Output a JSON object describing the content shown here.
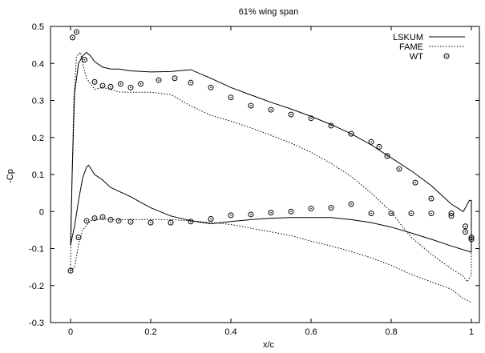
{
  "chart_data": {
    "type": "line",
    "title": "61% wing span",
    "xlabel": "x/c",
    "ylabel": "-Cp",
    "xlim": [
      -0.05,
      1.02
    ],
    "ylim": [
      -0.3,
      0.5
    ],
    "xticks": [
      "0",
      "0.2",
      "0.4",
      "0.6",
      "0.8",
      "1"
    ],
    "xtick_values": [
      0,
      0.2,
      0.4,
      0.6,
      0.8,
      1
    ],
    "yticks": [
      "-0.3",
      "-0.2",
      "-0.1",
      "0",
      "0.1",
      "0.2",
      "0.3",
      "0.4",
      "0.5"
    ],
    "ytick_values": [
      -0.3,
      -0.2,
      -0.1,
      0,
      0.1,
      0.2,
      0.3,
      0.4,
      0.5
    ],
    "grid": false,
    "legend_position": "top-right",
    "series": [
      {
        "name": "LSKUM",
        "style": "solid",
        "segments": [
          [
            [
              0.0,
              -0.09
            ],
            [
              0.004,
              0.1
            ],
            [
              0.01,
              0.32
            ],
            [
              0.02,
              0.4
            ],
            [
              0.03,
              0.42
            ],
            [
              0.04,
              0.43
            ],
            [
              0.05,
              0.42
            ],
            [
              0.06,
              0.405
            ],
            [
              0.08,
              0.39
            ],
            [
              0.1,
              0.385
            ],
            [
              0.12,
              0.385
            ],
            [
              0.15,
              0.38
            ],
            [
              0.2,
              0.377
            ],
            [
              0.25,
              0.378
            ],
            [
              0.3,
              0.383
            ],
            [
              0.35,
              0.36
            ],
            [
              0.4,
              0.335
            ],
            [
              0.45,
              0.315
            ],
            [
              0.5,
              0.295
            ],
            [
              0.55,
              0.277
            ],
            [
              0.6,
              0.257
            ],
            [
              0.65,
              0.235
            ],
            [
              0.7,
              0.21
            ],
            [
              0.75,
              0.18
            ],
            [
              0.8,
              0.145
            ],
            [
              0.85,
              0.11
            ],
            [
              0.9,
              0.07
            ],
            [
              0.95,
              0.02
            ],
            [
              0.98,
              0.0
            ],
            [
              0.995,
              0.03
            ],
            [
              1.0,
              0.03
            ],
            [
              1.0,
              -0.11
            ]
          ],
          [
            [
              0.0,
              -0.09
            ],
            [
              0.01,
              -0.04
            ],
            [
              0.02,
              0.03
            ],
            [
              0.03,
              0.09
            ],
            [
              0.04,
              0.12
            ],
            [
              0.045,
              0.125
            ],
            [
              0.06,
              0.1
            ],
            [
              0.08,
              0.085
            ],
            [
              0.1,
              0.065
            ],
            [
              0.12,
              0.055
            ],
            [
              0.15,
              0.04
            ],
            [
              0.2,
              0.01
            ],
            [
              0.25,
              -0.012
            ],
            [
              0.3,
              -0.025
            ],
            [
              0.35,
              -0.033
            ],
            [
              0.4,
              -0.027
            ],
            [
              0.45,
              -0.022
            ],
            [
              0.5,
              -0.018
            ],
            [
              0.55,
              -0.016
            ],
            [
              0.6,
              -0.016
            ],
            [
              0.65,
              -0.016
            ],
            [
              0.7,
              -0.022
            ],
            [
              0.75,
              -0.03
            ],
            [
              0.8,
              -0.042
            ],
            [
              0.85,
              -0.058
            ],
            [
              0.9,
              -0.075
            ],
            [
              0.95,
              -0.093
            ],
            [
              1.0,
              -0.11
            ]
          ]
        ]
      },
      {
        "name": "FAME",
        "style": "dotted",
        "segments": [
          [
            [
              0.0,
              -0.16
            ],
            [
              0.003,
              0.05
            ],
            [
              0.008,
              0.3
            ],
            [
              0.015,
              0.42
            ],
            [
              0.025,
              0.43
            ],
            [
              0.03,
              0.4
            ],
            [
              0.04,
              0.36
            ],
            [
              0.06,
              0.33
            ],
            [
              0.08,
              0.335
            ],
            [
              0.1,
              0.33
            ],
            [
              0.12,
              0.323
            ],
            [
              0.15,
              0.322
            ],
            [
              0.2,
              0.322
            ],
            [
              0.25,
              0.316
            ],
            [
              0.3,
              0.285
            ],
            [
              0.35,
              0.26
            ],
            [
              0.4,
              0.244
            ],
            [
              0.45,
              0.226
            ],
            [
              0.5,
              0.206
            ],
            [
              0.55,
              0.185
            ],
            [
              0.6,
              0.16
            ],
            [
              0.65,
              0.13
            ],
            [
              0.7,
              0.095
            ],
            [
              0.75,
              0.05
            ],
            [
              0.8,
              0.0
            ],
            [
              0.82,
              -0.03
            ],
            [
              0.85,
              -0.07
            ],
            [
              0.9,
              -0.115
            ],
            [
              0.95,
              -0.155
            ],
            [
              0.98,
              -0.175
            ],
            [
              0.99,
              -0.19
            ],
            [
              1.0,
              -0.17
            ],
            [
              1.0,
              -0.07
            ]
          ],
          [
            [
              0.0,
              -0.16
            ],
            [
              0.01,
              -0.15
            ],
            [
              0.02,
              -0.09
            ],
            [
              0.03,
              -0.05
            ],
            [
              0.05,
              -0.025
            ],
            [
              0.08,
              -0.02
            ],
            [
              0.1,
              -0.022
            ],
            [
              0.15,
              -0.022
            ],
            [
              0.2,
              -0.022
            ],
            [
              0.25,
              -0.022
            ],
            [
              0.3,
              -0.025
            ],
            [
              0.35,
              -0.03
            ],
            [
              0.4,
              -0.035
            ],
            [
              0.45,
              -0.045
            ],
            [
              0.5,
              -0.055
            ],
            [
              0.55,
              -0.065
            ],
            [
              0.6,
              -0.08
            ],
            [
              0.65,
              -0.093
            ],
            [
              0.7,
              -0.108
            ],
            [
              0.75,
              -0.125
            ],
            [
              0.8,
              -0.145
            ],
            [
              0.85,
              -0.17
            ],
            [
              0.9,
              -0.19
            ],
            [
              0.95,
              -0.21
            ],
            [
              0.98,
              -0.235
            ],
            [
              1.0,
              -0.245
            ]
          ]
        ]
      },
      {
        "name": "WT",
        "style": "markers",
        "points": [
          [
            0.005,
            0.47
          ],
          [
            0.015,
            0.485
          ],
          [
            0.035,
            0.41
          ],
          [
            0.06,
            0.35
          ],
          [
            0.08,
            0.34
          ],
          [
            0.1,
            0.337
          ],
          [
            0.125,
            0.345
          ],
          [
            0.15,
            0.335
          ],
          [
            0.175,
            0.345
          ],
          [
            0.22,
            0.355
          ],
          [
            0.26,
            0.36
          ],
          [
            0.3,
            0.348
          ],
          [
            0.35,
            0.335
          ],
          [
            0.4,
            0.308
          ],
          [
            0.45,
            0.286
          ],
          [
            0.5,
            0.275
          ],
          [
            0.55,
            0.262
          ],
          [
            0.6,
            0.252
          ],
          [
            0.65,
            0.232
          ],
          [
            0.7,
            0.21
          ],
          [
            0.75,
            0.188
          ],
          [
            0.77,
            0.175
          ],
          [
            0.79,
            0.15
          ],
          [
            0.82,
            0.115
          ],
          [
            0.86,
            0.078
          ],
          [
            0.9,
            0.035
          ],
          [
            0.95,
            -0.005
          ],
          [
            0.985,
            -0.04
          ],
          [
            0.985,
            -0.055
          ],
          [
            1.0,
            -0.075
          ],
          [
            0.0,
            -0.16
          ],
          [
            0.02,
            -0.07
          ],
          [
            0.04,
            -0.025
          ],
          [
            0.06,
            -0.018
          ],
          [
            0.08,
            -0.015
          ],
          [
            0.1,
            -0.022
          ],
          [
            0.12,
            -0.025
          ],
          [
            0.15,
            -0.028
          ],
          [
            0.2,
            -0.03
          ],
          [
            0.25,
            -0.03
          ],
          [
            0.3,
            -0.027
          ],
          [
            0.35,
            -0.02
          ],
          [
            0.4,
            -0.01
          ],
          [
            0.45,
            -0.008
          ],
          [
            0.5,
            -0.003
          ],
          [
            0.55,
            0.0
          ],
          [
            0.6,
            0.008
          ],
          [
            0.65,
            0.01
          ],
          [
            0.7,
            0.02
          ],
          [
            0.75,
            -0.005
          ],
          [
            0.8,
            -0.005
          ],
          [
            0.85,
            -0.005
          ],
          [
            0.9,
            -0.005
          ],
          [
            0.95,
            -0.012
          ],
          [
            1.0,
            -0.07
          ]
        ]
      }
    ]
  }
}
